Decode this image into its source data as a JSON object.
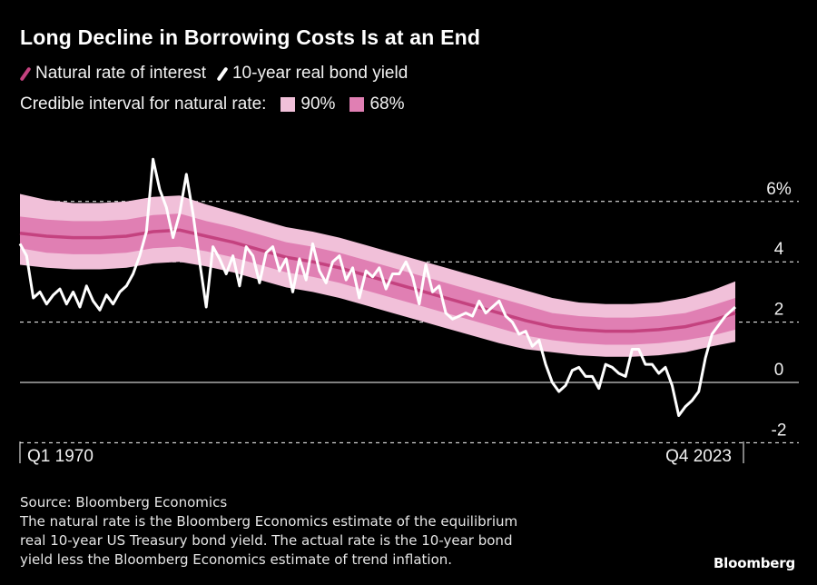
{
  "title": "Long Decline in Borrowing Costs Is at an End",
  "legend": {
    "natural_rate_label": "Natural rate of interest",
    "bond_yield_label": "10-year real bond yield",
    "interval_label": "Credible interval for natural rate:",
    "ci90_label": "90%",
    "ci68_label": "68%"
  },
  "colors": {
    "natural_rate": "#c4427f",
    "ci68": "#e07fb3",
    "ci90": "#f1c0d9",
    "bond_yield": "#ffffff",
    "background": "#000000"
  },
  "footer": {
    "source": "Source: Bloomberg Economics",
    "note_line1": "The natural rate is the Bloomberg Economics estimate of the equilibrium",
    "note_line2": "real 10-year US Treasury bond yield. The actual rate is the 10-year bond",
    "note_line3": "yield less the Bloomberg Economics estimate of trend inflation."
  },
  "brand": "Bloomberg",
  "chart_data": {
    "type": "line",
    "x_start_label": "Q1 1970",
    "x_end_label": "Q4 2023",
    "xlim": [
      1970.0,
      2023.75
    ],
    "ylim": [
      -2,
      6
    ],
    "yticks": [
      {
        "value": 6,
        "label": "6%"
      },
      {
        "value": 4,
        "label": "4"
      },
      {
        "value": 2,
        "label": "2"
      },
      {
        "value": 0,
        "label": "0"
      },
      {
        "value": -2,
        "label": "-2"
      }
    ],
    "grid": "horizontal dashed",
    "natural_rate": {
      "x": [
        1970,
        1972,
        1974,
        1976,
        1978,
        1980,
        1982,
        1984,
        1986,
        1988,
        1990,
        1992,
        1994,
        1996,
        1998,
        2000,
        2002,
        2004,
        2006,
        2008,
        2010,
        2012,
        2014,
        2016,
        2018,
        2020,
        2022,
        2023.75
      ],
      "mid": [
        4.95,
        4.85,
        4.8,
        4.8,
        4.85,
        5.0,
        5.05,
        4.85,
        4.65,
        4.4,
        4.15,
        4.0,
        3.8,
        3.55,
        3.3,
        3.05,
        2.8,
        2.55,
        2.3,
        2.05,
        1.85,
        1.75,
        1.7,
        1.7,
        1.75,
        1.85,
        2.05,
        2.3
      ],
      "ci68": [
        [
          4.45,
          5.5
        ],
        [
          4.3,
          5.4
        ],
        [
          4.25,
          5.35
        ],
        [
          4.25,
          5.35
        ],
        [
          4.3,
          5.4
        ],
        [
          4.45,
          5.55
        ],
        [
          4.5,
          5.6
        ],
        [
          4.35,
          5.35
        ],
        [
          4.15,
          5.15
        ],
        [
          3.9,
          4.9
        ],
        [
          3.65,
          4.65
        ],
        [
          3.5,
          4.5
        ],
        [
          3.3,
          4.3
        ],
        [
          3.05,
          4.05
        ],
        [
          2.8,
          3.8
        ],
        [
          2.55,
          3.55
        ],
        [
          2.3,
          3.3
        ],
        [
          2.05,
          3.05
        ],
        [
          1.8,
          2.8
        ],
        [
          1.55,
          2.55
        ],
        [
          1.4,
          2.3
        ],
        [
          1.3,
          2.2
        ],
        [
          1.25,
          2.15
        ],
        [
          1.25,
          2.15
        ],
        [
          1.3,
          2.2
        ],
        [
          1.4,
          2.3
        ],
        [
          1.55,
          2.55
        ],
        [
          1.75,
          2.8
        ]
      ],
      "ci90": [
        [
          3.9,
          6.25
        ],
        [
          3.8,
          6.05
        ],
        [
          3.75,
          5.95
        ],
        [
          3.75,
          5.95
        ],
        [
          3.8,
          6.0
        ],
        [
          3.95,
          6.15
        ],
        [
          4.0,
          6.2
        ],
        [
          3.85,
          5.9
        ],
        [
          3.65,
          5.65
        ],
        [
          3.4,
          5.4
        ],
        [
          3.15,
          5.15
        ],
        [
          3.0,
          5.0
        ],
        [
          2.8,
          4.8
        ],
        [
          2.55,
          4.55
        ],
        [
          2.3,
          4.3
        ],
        [
          2.05,
          4.05
        ],
        [
          1.8,
          3.8
        ],
        [
          1.55,
          3.55
        ],
        [
          1.3,
          3.3
        ],
        [
          1.1,
          3.05
        ],
        [
          1.0,
          2.8
        ],
        [
          0.9,
          2.65
        ],
        [
          0.85,
          2.6
        ],
        [
          0.85,
          2.6
        ],
        [
          0.9,
          2.65
        ],
        [
          1.0,
          2.8
        ],
        [
          1.2,
          3.05
        ],
        [
          1.35,
          3.35
        ]
      ]
    },
    "bond_yield": {
      "x": [
        1970,
        1970.5,
        1971,
        1971.5,
        1972,
        1972.5,
        1973,
        1973.5,
        1974,
        1974.5,
        1975,
        1975.5,
        1976,
        1976.5,
        1977,
        1977.5,
        1978,
        1978.5,
        1979,
        1979.5,
        1980,
        1980.5,
        1981,
        1981.5,
        1982,
        1982.5,
        1983,
        1983.5,
        1984,
        1984.5,
        1985,
        1985.5,
        1986,
        1986.5,
        1987,
        1987.5,
        1988,
        1988.5,
        1989,
        1989.5,
        1990,
        1990.5,
        1991,
        1991.5,
        1992,
        1992.5,
        1993,
        1993.5,
        1994,
        1994.5,
        1995,
        1995.5,
        1996,
        1996.5,
        1997,
        1997.5,
        1998,
        1998.5,
        1999,
        1999.5,
        2000,
        2000.5,
        2001,
        2001.5,
        2002,
        2002.5,
        2003,
        2003.5,
        2004,
        2004.5,
        2005,
        2005.5,
        2006,
        2006.5,
        2007,
        2007.5,
        2008,
        2008.5,
        2009,
        2009.5,
        2010,
        2010.5,
        2011,
        2011.5,
        2012,
        2012.5,
        2013,
        2013.5,
        2014,
        2014.5,
        2015,
        2015.5,
        2016,
        2016.5,
        2017,
        2017.5,
        2018,
        2018.5,
        2019,
        2019.5,
        2020,
        2020.5,
        2021,
        2021.5,
        2022,
        2022.5,
        2023,
        2023.75
      ],
      "y": [
        4.6,
        4.2,
        2.8,
        3.0,
        2.6,
        2.9,
        3.1,
        2.6,
        3.0,
        2.5,
        3.2,
        2.7,
        2.4,
        2.9,
        2.6,
        3.0,
        3.2,
        3.6,
        4.2,
        5.0,
        7.4,
        6.4,
        5.8,
        4.8,
        5.6,
        6.9,
        5.6,
        4.0,
        2.5,
        4.5,
        4.1,
        3.6,
        4.2,
        3.2,
        4.5,
        4.2,
        3.3,
        4.3,
        4.5,
        3.7,
        4.1,
        3.0,
        4.1,
        3.4,
        4.6,
        3.7,
        3.3,
        4.0,
        4.2,
        3.4,
        3.8,
        2.8,
        3.7,
        3.5,
        3.8,
        3.1,
        3.6,
        3.6,
        4.0,
        3.5,
        2.6,
        3.9,
        3.0,
        3.2,
        2.3,
        2.1,
        2.2,
        2.3,
        2.2,
        2.7,
        2.3,
        2.5,
        2.7,
        2.2,
        2.0,
        1.6,
        1.7,
        1.2,
        1.4,
        0.6,
        0.0,
        -0.3,
        -0.1,
        0.4,
        0.5,
        0.2,
        0.2,
        -0.2,
        0.6,
        0.5,
        0.3,
        0.2,
        1.1,
        1.1,
        0.6,
        0.6,
        0.3,
        0.5,
        -0.1,
        -1.1,
        -0.8,
        -0.6,
        -0.3,
        0.8,
        1.6,
        1.9,
        2.2,
        2.5
      ]
    }
  }
}
